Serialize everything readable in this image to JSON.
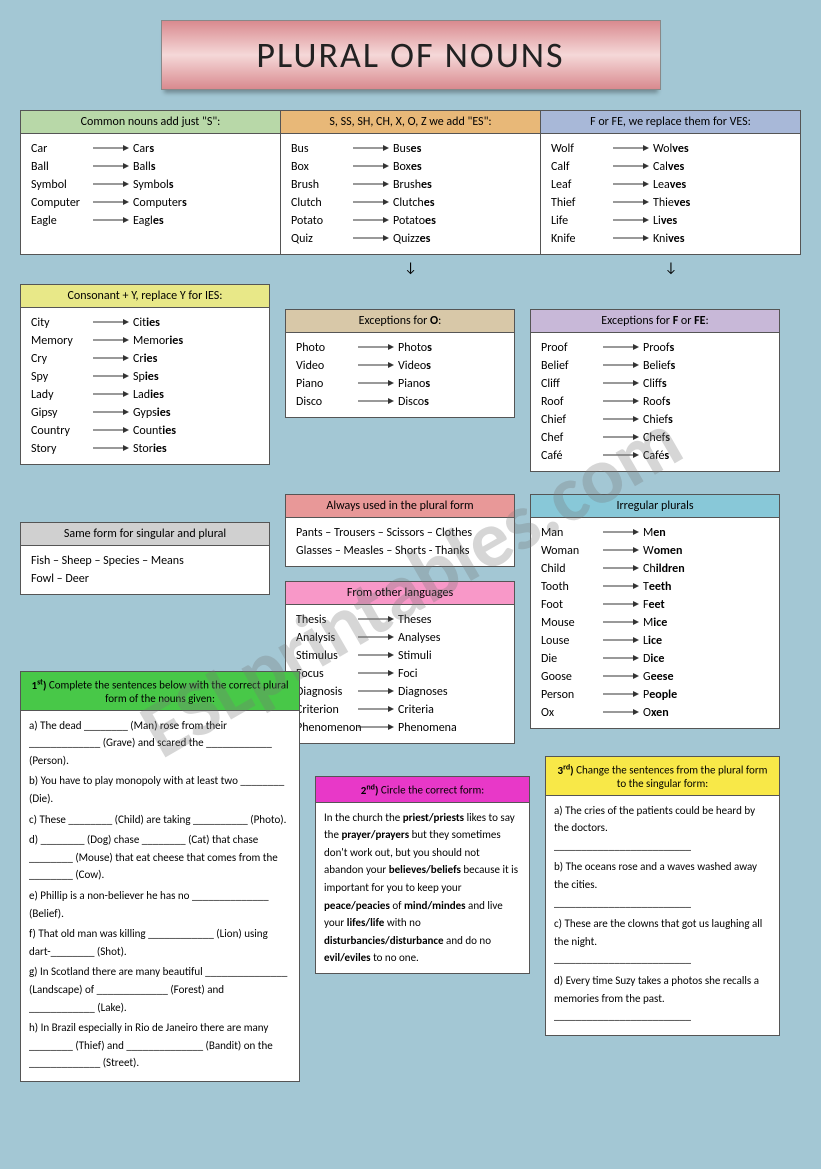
{
  "title": "PLURAL OF NOUNS",
  "watermark": "ESLprintables.com",
  "topRules": [
    {
      "header": "Common nouns add just \"S\":",
      "headerClass": "hdr-green",
      "pairs": [
        [
          "Car",
          "Cars"
        ],
        [
          "Ball",
          "Balls"
        ],
        [
          "Symbol",
          "Symbols"
        ],
        [
          "Computer",
          "Computers"
        ],
        [
          "Eagle",
          "Eagles"
        ]
      ]
    },
    {
      "header": "S, SS, SH, CH, X, O, Z we add \"ES\":",
      "headerClass": "hdr-orange",
      "pairs": [
        [
          "Bus",
          "Buses"
        ],
        [
          "Box",
          "Boxes"
        ],
        [
          "Brush",
          "Brushes"
        ],
        [
          "Clutch",
          "Clutches"
        ],
        [
          "Potato",
          "Potatoes"
        ],
        [
          "Quiz",
          "Quizzes"
        ]
      ]
    },
    {
      "header": "F or FE, we replace them for VES:",
      "headerClass": "hdr-blue",
      "pairs": [
        [
          "Wolf",
          "Wolves"
        ],
        [
          "Calf",
          "Calves"
        ],
        [
          "Leaf",
          "Leaves"
        ],
        [
          "Thief",
          "Thieves"
        ],
        [
          "Life",
          "Lives"
        ],
        [
          "Knife",
          "Knives"
        ]
      ]
    }
  ],
  "consonantY": {
    "header": "Consonant + Y, replace Y for IES:",
    "headerClass": "hdr-yellow",
    "pairs": [
      [
        "City",
        "Cities"
      ],
      [
        "Memory",
        "Memories"
      ],
      [
        "Cry",
        "Cries"
      ],
      [
        "Spy",
        "Spies"
      ],
      [
        "Lady",
        "Ladies"
      ],
      [
        "Gipsy",
        "Gypsies"
      ],
      [
        "Country",
        "Counties"
      ],
      [
        "Story",
        "Stories"
      ]
    ]
  },
  "exceptO": {
    "header": "Exceptions for O:",
    "headerClass": "hdr-tan",
    "pairs": [
      [
        "Photo",
        "Photos"
      ],
      [
        "Video",
        "Videos"
      ],
      [
        "Piano",
        "Pianos"
      ],
      [
        "Disco",
        "Discos"
      ]
    ]
  },
  "exceptF": {
    "header": "Exceptions for F or FE:",
    "headerClass": "hdr-purple",
    "pairs": [
      [
        "Proof",
        "Proofs"
      ],
      [
        "Belief",
        "Beliefs"
      ],
      [
        "Cliff",
        "Cliffs"
      ],
      [
        "Roof",
        "Roofs"
      ],
      [
        "Chief",
        "Chiefs"
      ],
      [
        "Chef",
        "Chefs"
      ],
      [
        "Café",
        "Cafés"
      ]
    ]
  },
  "sameForm": {
    "header": "Same form for singular and plural",
    "headerClass": "hdr-gray",
    "text": "Fish – Sheep – Species – Means\nFowl – Deer"
  },
  "alwaysPlural": {
    "header": "Always used in the plural form",
    "headerClass": "hdr-red",
    "text": "Pants – Trousers – Scissors – Clothes\nGlasses – Measles – Shorts - Thanks"
  },
  "irregular": {
    "header": "Irregular plurals",
    "headerClass": "hdr-teal",
    "pairs": [
      [
        "Man",
        "Men"
      ],
      [
        "Woman",
        "Women"
      ],
      [
        "Child",
        "Children"
      ],
      [
        "Tooth",
        "Teeth"
      ],
      [
        "Foot",
        "Feet"
      ],
      [
        "Mouse",
        "Mice"
      ],
      [
        "Louse",
        "Lice"
      ],
      [
        "Die",
        "Dice"
      ],
      [
        "Goose",
        "Geese"
      ],
      [
        "Person",
        "People"
      ],
      [
        "Ox",
        "Oxen"
      ]
    ]
  },
  "otherLang": {
    "header": "From other languages",
    "headerClass": "hdr-pink",
    "pairs": [
      [
        "Thesis",
        "Theses"
      ],
      [
        "Analysis",
        "Analyses"
      ],
      [
        "Stimulus",
        "Stimuli"
      ],
      [
        "Focus",
        "Foci"
      ],
      [
        "Diagnosis",
        "Diagnoses"
      ],
      [
        "Criterion",
        "Criteria"
      ],
      [
        "Phenomenon",
        "Phenomena"
      ]
    ]
  },
  "ex1": {
    "header": "1st) Complete the sentences below with the correct plural form of the nouns given:",
    "items": [
      "a) The dead ________ (Man) rose from their _____________ (Grave) and scared the ____________ (Person).",
      "b) You have to play monopoly with at least two ________ (Die).",
      "c) These ________ (Child) are taking __________ (Photo).",
      "d) ________ (Dog) chase ________ (Cat) that chase ________ (Mouse) that eat cheese that comes from the ________ (Cow).",
      "e) Phillip is a non-believer he has no ______________ (Belief).",
      "f) That old man was killing ____________ (Lion) using dart-________ (Shot).",
      "g) In Scotland there are many beautiful _______________ (Landscape) of _____________ (Forest) and ____________ (Lake).",
      "h) In Brazil especially in Rio de Janeiro there are many ________ (Thief) and ______________ (Bandit) on the _____________ (Street)."
    ]
  },
  "ex2": {
    "header": "2nd) Circle the correct form:",
    "text": "In the church the priest/priests likes to say the prayer/prayers but they sometimes don't work out, but you should not abandon your believes/beliefs because it is important for you to keep your peace/peacies of mind/mindes and live your lifes/life with no disturbancies/disturbance and do no evil/eviles to no one."
  },
  "ex3": {
    "header": "3rd) Change the sentences from the plural form to the singular form:",
    "items": [
      "a) The cries of the patients could be heard by the doctors.",
      "b) The oceans rose and a waves washed away the cities.",
      "c) These are the clowns that got us laughing all the night.",
      "d) Every time Suzy takes a photos she recalls a memories from the past."
    ]
  }
}
